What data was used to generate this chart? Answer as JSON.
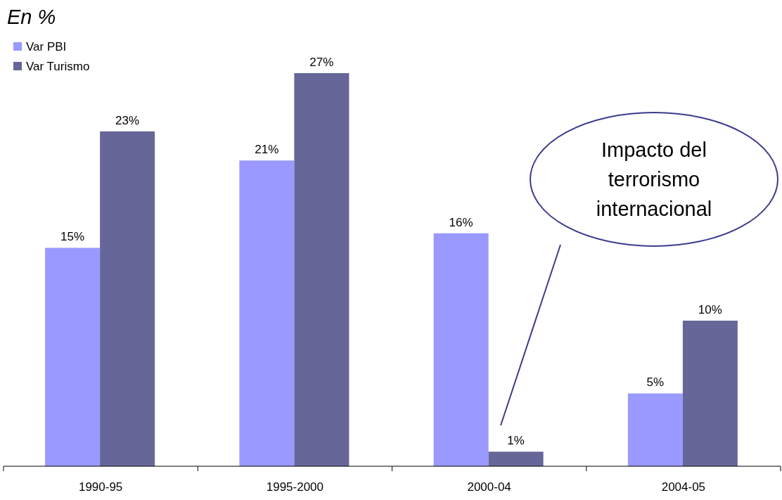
{
  "chart_data": {
    "type": "bar",
    "title": "En %",
    "categories": [
      "1990-95",
      "1995-2000",
      "2000-04",
      "2004-05"
    ],
    "series": [
      {
        "name": "Var PBI",
        "color": "#9999ff",
        "values": [
          15,
          21,
          16,
          5
        ],
        "value_labels": [
          "15%",
          "21%",
          "16%",
          "5%"
        ]
      },
      {
        "name": "Var Turismo",
        "color": "#666699",
        "values": [
          23,
          27,
          1,
          10
        ],
        "value_labels": [
          "23%",
          "27%",
          "1%",
          "10%"
        ]
      }
    ],
    "legend": "top left",
    "annotations": [
      "Impacto del terrorismo internacional"
    ]
  }
}
